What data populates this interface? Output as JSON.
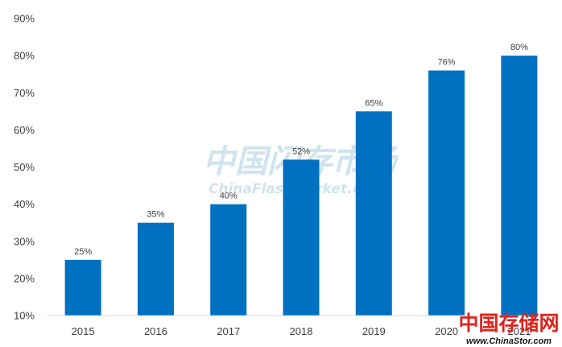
{
  "chart_data": {
    "type": "bar",
    "categories": [
      "2015",
      "2016",
      "2017",
      "2018",
      "2019",
      "2020",
      "2021"
    ],
    "values": [
      25,
      35,
      40,
      52,
      65,
      76,
      80
    ],
    "data_labels": [
      "25%",
      "35%",
      "40%",
      "52%",
      "65%",
      "76%",
      "80%"
    ],
    "y_tick_labels": [
      "10%",
      "20%",
      "30%",
      "40%",
      "50%",
      "60%",
      "70%",
      "80%",
      "90%"
    ],
    "ylim": [
      10,
      90
    ],
    "y_unit": "%",
    "title": "",
    "xlabel": "",
    "ylabel": "",
    "grid": false,
    "legend": "none",
    "bar_color": "#0070C0",
    "axis_color": "#D9D9D9"
  },
  "watermark": {
    "center_cn": "中国闪存市场",
    "center_en": "ChinaFlashMarket.com",
    "corner_cn": "中国存储网",
    "corner_url": "www.ChinaStor.com",
    "center_color": "#CFE4EE",
    "corner_cn_color": "#E0211B",
    "corner_url_color": "#1A1A1A"
  }
}
